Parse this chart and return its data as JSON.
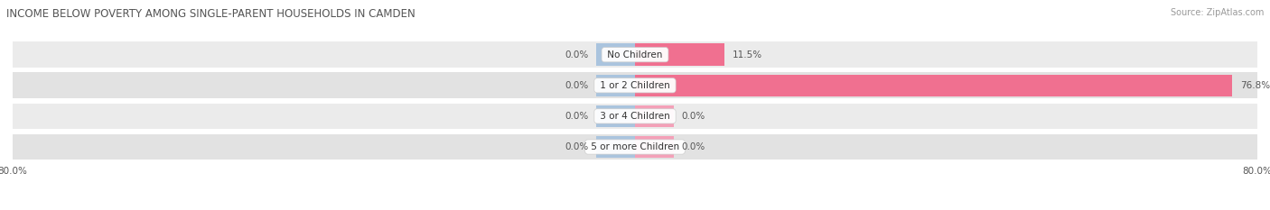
{
  "title": "INCOME BELOW POVERTY AMONG SINGLE-PARENT HOUSEHOLDS IN CAMDEN",
  "source": "Source: ZipAtlas.com",
  "categories": [
    "No Children",
    "1 or 2 Children",
    "3 or 4 Children",
    "5 or more Children"
  ],
  "single_father_values": [
    0.0,
    0.0,
    0.0,
    0.0
  ],
  "single_mother_values": [
    11.5,
    76.8,
    0.0,
    0.0
  ],
  "father_color": "#aac4de",
  "mother_color": "#f07090",
  "mother_color_light": "#f4a0b8",
  "row_bg_even": "#ebebeb",
  "row_bg_odd": "#e2e2e2",
  "axis_min": -80.0,
  "axis_max": 80.0,
  "title_fontsize": 8.5,
  "label_fontsize": 7.5,
  "value_fontsize": 7.5,
  "tick_fontsize": 7.5,
  "legend_fontsize": 8,
  "source_fontsize": 7
}
